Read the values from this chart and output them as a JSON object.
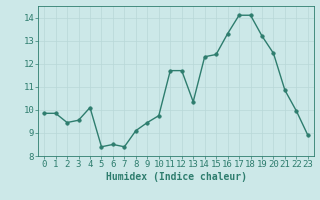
{
  "x": [
    0,
    1,
    2,
    3,
    4,
    5,
    6,
    7,
    8,
    9,
    10,
    11,
    12,
    13,
    14,
    15,
    16,
    17,
    18,
    19,
    20,
    21,
    22,
    23
  ],
  "y": [
    9.85,
    9.85,
    9.45,
    9.55,
    10.1,
    8.4,
    8.5,
    8.4,
    9.1,
    9.45,
    9.75,
    11.7,
    11.7,
    10.35,
    12.3,
    12.4,
    13.3,
    14.1,
    14.1,
    13.2,
    12.45,
    10.85,
    9.95,
    8.9
  ],
  "line_color": "#2e7d6e",
  "bg_color": "#cce8e8",
  "grid_color": "#b8d8d8",
  "xlabel": "Humidex (Indice chaleur)",
  "ylim": [
    8,
    14.5
  ],
  "xlim": [
    -0.5,
    23.5
  ],
  "yticks": [
    8,
    9,
    10,
    11,
    12,
    13,
    14
  ],
  "xticks": [
    0,
    1,
    2,
    3,
    4,
    5,
    6,
    7,
    8,
    9,
    10,
    11,
    12,
    13,
    14,
    15,
    16,
    17,
    18,
    19,
    20,
    21,
    22,
    23
  ],
  "markersize": 2.5,
  "linewidth": 1.0,
  "xlabel_fontsize": 7,
  "tick_fontsize": 6.5
}
